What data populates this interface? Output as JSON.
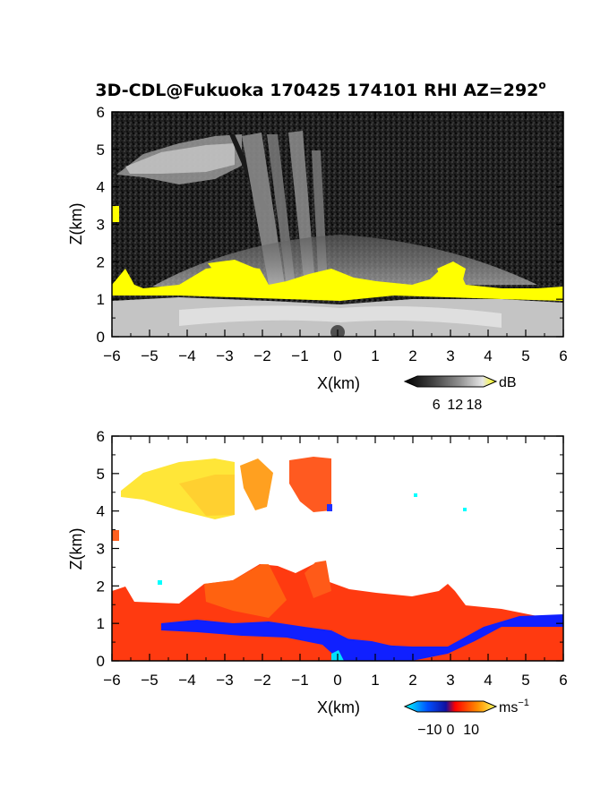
{
  "title": "3D-CDL@Fukuoka 170425 174101 RHI AZ=292",
  "title_degree": "o",
  "chart_data": [
    {
      "type": "heatmap",
      "panel": "reflectivity",
      "xlabel": "X(km)",
      "ylabel": "Z(km)",
      "xlim": [
        -6,
        6
      ],
      "ylim": [
        0,
        6
      ],
      "xticks": [
        "-6",
        "-5",
        "-4",
        "-3",
        "-2",
        "-1",
        "0",
        "1",
        "2",
        "3",
        "4",
        "5",
        "6"
      ],
      "yticks": [
        "0",
        "1",
        "2",
        "3",
        "4",
        "5",
        "6"
      ],
      "colorbar": {
        "unit": "dB",
        "ticks": [
          "6",
          "12",
          "18"
        ],
        "colors": [
          "#000000",
          "#505050",
          "#9a9a9a",
          "#e0e0e0",
          "#ffff00"
        ]
      },
      "features": [
        {
          "name": "yellow-band",
          "x": [
            -6,
            6
          ],
          "z": [
            1.0,
            1.6
          ],
          "color": "#ffff00"
        },
        {
          "name": "bright-bottom-layer",
          "x": [
            -6,
            6
          ],
          "z": [
            0,
            1.2
          ],
          "color": "#d0d0d0"
        },
        {
          "name": "upper-cloud",
          "x": [
            -6,
            -1.5
          ],
          "z": [
            4.3,
            5.6
          ],
          "color": "#c0c0c0"
        }
      ]
    },
    {
      "type": "heatmap",
      "panel": "doppler-velocity",
      "xlabel": "X(km)",
      "ylabel": "Z(km)",
      "xlim": [
        -6,
        6
      ],
      "ylim": [
        0,
        6
      ],
      "xticks": [
        "-6",
        "-5",
        "-4",
        "-3",
        "-2",
        "-1",
        "0",
        "1",
        "2",
        "3",
        "4",
        "5",
        "6"
      ],
      "yticks": [
        "0",
        "1",
        "2",
        "3",
        "4",
        "5",
        "6"
      ],
      "colorbar": {
        "unit": "ms",
        "unit_exponent": "−1",
        "ticks": [
          "−10",
          "0",
          "10"
        ],
        "colors": [
          "#00ffff",
          "#0000ff",
          "#ff0000",
          "#ff8000",
          "#ffff00"
        ]
      },
      "features": [
        {
          "name": "upper-cloud",
          "x": [
            -5.8,
            -2.8
          ],
          "z": [
            4.4,
            5.5
          ],
          "color": "#ffe030"
        },
        {
          "name": "fall-streak-1",
          "x": [
            -2.7,
            -1.8
          ],
          "z": [
            4.0,
            5.4
          ],
          "color": "#ff9a20"
        },
        {
          "name": "fall-streak-2",
          "x": [
            -1.3,
            -0.2
          ],
          "z": [
            4.0,
            5.4
          ],
          "color": "#ff5020"
        },
        {
          "name": "lower-cloud",
          "x": [
            -6,
            6
          ],
          "z": [
            0,
            2.6
          ],
          "color": "#ff3010"
        },
        {
          "name": "negative-velocity-layer",
          "x": [
            -4.5,
            6
          ],
          "z": [
            0,
            1.2
          ],
          "color": "#0010ff"
        }
      ]
    }
  ]
}
